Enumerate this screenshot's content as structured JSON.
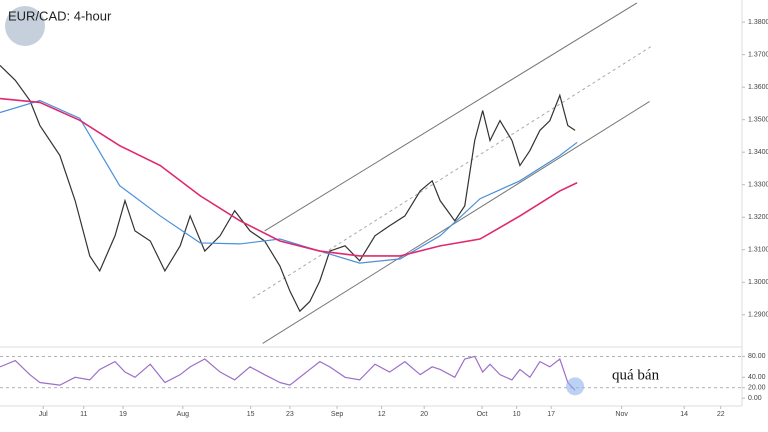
{
  "chart_data": [
    {
      "type": "line",
      "title": "EUR/CAD: 4-hour",
      "xlim": [
        0,
        111.6
      ],
      "ylim": [
        1.2801,
        1.3868
      ],
      "yticks": [
        {
          "value": 1.29,
          "label": "1.2900"
        },
        {
          "value": 1.3,
          "label": "1.3000"
        },
        {
          "value": 1.31,
          "label": "1.3100"
        },
        {
          "value": 1.32,
          "label": "1.3200"
        },
        {
          "value": 1.33,
          "label": "1.3300"
        },
        {
          "value": 1.34,
          "label": "1.3400"
        },
        {
          "value": 1.35,
          "label": "1.3500"
        },
        {
          "value": 1.36,
          "label": "1.3600"
        },
        {
          "value": 1.37,
          "label": "1.3700"
        },
        {
          "value": 1.38,
          "label": "1.3800"
        }
      ],
      "series": [
        {
          "color": "#333333",
          "width": 1.2,
          "x": [
            0,
            2.3,
            4.5,
            6.0,
            9.0,
            11.3,
            13.5,
            15.0,
            17.3,
            18.8,
            20.3,
            22.6,
            24.8,
            27.1,
            28.6,
            30.8,
            33.1,
            35.3,
            37.6,
            39.8,
            42.1,
            43.6,
            45.1,
            46.6,
            48.1,
            49.6,
            51.9,
            54.1,
            56.4,
            58.6,
            60.9,
            63.2,
            65.0,
            66.2,
            68.4,
            69.9,
            71.4,
            72.6,
            73.7,
            75.2,
            77.0,
            78.2,
            79.7,
            81.2,
            82.7,
            84.2,
            85.4,
            86.5
          ],
          "values": [
            1.3667,
            1.3621,
            1.3559,
            1.3482,
            1.339,
            1.3251,
            1.3081,
            1.3035,
            1.3143,
            1.3251,
            1.3158,
            1.3127,
            1.3035,
            1.3112,
            1.3204,
            1.3096,
            1.3143,
            1.322,
            1.3158,
            1.3127,
            1.305,
            1.2973,
            1.2911,
            1.2941,
            1.3004,
            1.3096,
            1.3112,
            1.3066,
            1.3143,
            1.3174,
            1.3204,
            1.3281,
            1.3312,
            1.3251,
            1.3189,
            1.3235,
            1.3436,
            1.3528,
            1.3436,
            1.3497,
            1.3436,
            1.3359,
            1.3405,
            1.3467,
            1.3497,
            1.3575,
            1.3482,
            1.3467
          ]
        },
        {
          "color": "#4a90d9",
          "width": 1.2,
          "x": [
            0,
            6.0,
            12.0,
            18.0,
            24.1,
            30.1,
            36.1,
            42.1,
            48.1,
            54.1,
            60.2,
            66.2,
            72.2,
            78.2,
            84.2,
            86.8
          ],
          "values": [
            1.3522,
            1.3559,
            1.3504,
            1.3297,
            1.3204,
            1.3121,
            1.3118,
            1.3133,
            1.3096,
            1.3059,
            1.3072,
            1.3143,
            1.3257,
            1.3312,
            1.339,
            1.343
          ]
        },
        {
          "color": "#e0286f",
          "width": 1.6,
          "x": [
            0,
            6.0,
            12.0,
            18.0,
            24.1,
            30.1,
            36.1,
            42.1,
            48.1,
            54.1,
            60.2,
            66.2,
            72.2,
            78.2,
            84.2,
            86.8
          ],
          "values": [
            1.3565,
            1.3553,
            1.3498,
            1.342,
            1.3359,
            1.3266,
            1.3189,
            1.3127,
            1.3096,
            1.3081,
            1.3081,
            1.3112,
            1.3133,
            1.3204,
            1.3281,
            1.3306
          ]
        }
      ],
      "trendlines": [
        {
          "x": [
            39.5,
            97.7
          ],
          "y": [
            1.2812,
            1.3556
          ],
          "color": "#777777",
          "dashed": false
        },
        {
          "x": [
            39.8,
            95.8
          ],
          "y": [
            1.3158,
            1.3859
          ],
          "color": "#777777",
          "dashed": false
        },
        {
          "x": [
            38.0,
            98.0
          ],
          "y": [
            1.2951,
            1.3726
          ],
          "color": "#aaaaaa",
          "dashed": true
        }
      ]
    },
    {
      "type": "line",
      "annotation": "quá bán",
      "xlim": [
        0,
        111.6
      ],
      "ylim": [
        -15,
        98
      ],
      "yticks": [
        {
          "value": 0,
          "label": "0.00"
        },
        {
          "value": 20,
          "label": "20.00"
        },
        {
          "value": 40,
          "label": "40.00"
        },
        {
          "value": 80,
          "label": "80.00"
        }
      ],
      "levels": [
        80,
        20
      ],
      "xticks": [
        {
          "value": 6.5,
          "label": "Jul"
        },
        {
          "value": 12.6,
          "label": "11"
        },
        {
          "value": 18.5,
          "label": "19"
        },
        {
          "value": 27.5,
          "label": "Aug"
        },
        {
          "value": 37.7,
          "label": "15"
        },
        {
          "value": 43.6,
          "label": "23"
        },
        {
          "value": 50.7,
          "label": "Sep"
        },
        {
          "value": 57.4,
          "label": "12"
        },
        {
          "value": 63.8,
          "label": "20"
        },
        {
          "value": 72.5,
          "label": "Oct"
        },
        {
          "value": 77.7,
          "label": "10"
        },
        {
          "value": 82.9,
          "label": "17"
        },
        {
          "value": 93.5,
          "label": "Nov"
        },
        {
          "value": 102.9,
          "label": "14"
        },
        {
          "value": 108.4,
          "label": "22"
        }
      ],
      "series": [
        {
          "color": "#9c6fc9",
          "width": 1.2,
          "x": [
            0,
            2.3,
            4.5,
            6.0,
            9.0,
            11.3,
            13.5,
            15.0,
            17.3,
            18.8,
            20.3,
            22.6,
            24.8,
            27.1,
            28.6,
            30.8,
            33.1,
            35.3,
            37.6,
            39.8,
            42.1,
            43.6,
            45.1,
            46.6,
            48.1,
            49.6,
            51.9,
            54.1,
            56.4,
            58.6,
            60.9,
            63.2,
            65.0,
            66.2,
            68.4,
            69.9,
            71.4,
            72.6,
            73.7,
            75.2,
            77.0,
            78.2,
            79.7,
            81.2,
            82.7,
            84.2,
            85.4,
            86.5
          ],
          "values": [
            60,
            72,
            45,
            30,
            25,
            40,
            35,
            55,
            70,
            50,
            40,
            65,
            30,
            45,
            60,
            75,
            50,
            35,
            60,
            45,
            30,
            25,
            40,
            55,
            70,
            60,
            40,
            35,
            65,
            50,
            70,
            45,
            60,
            55,
            40,
            75,
            80,
            50,
            65,
            45,
            35,
            55,
            40,
            70,
            60,
            75,
            30,
            15
          ]
        }
      ]
    }
  ]
}
